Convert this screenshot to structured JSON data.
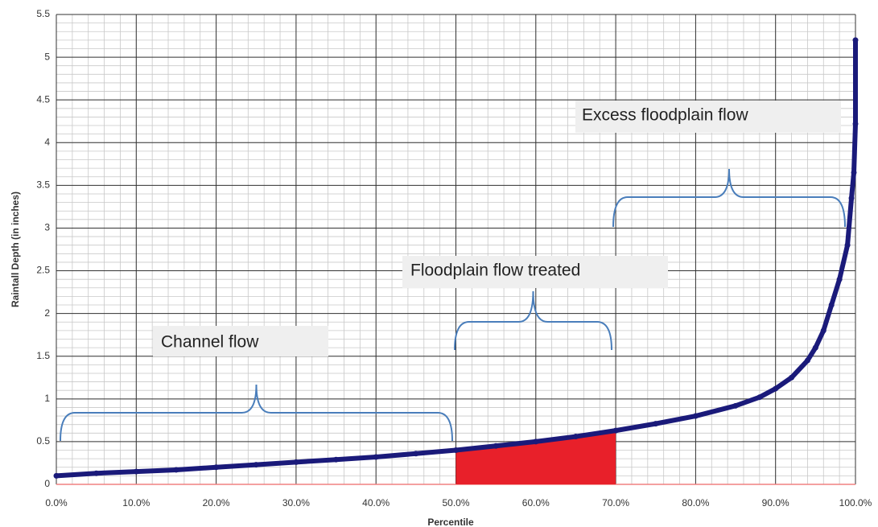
{
  "chart_data": {
    "type": "line",
    "x_label": "Percentile",
    "y_label": "Raintall Depth (in inches)",
    "xlim": [
      0,
      100
    ],
    "xticks": [
      {
        "value": 0,
        "label": "0.0%"
      },
      {
        "value": 10,
        "label": "10.0%"
      },
      {
        "value": 20,
        "label": "20.0%"
      },
      {
        "value": 30,
        "label": "30.0%"
      },
      {
        "value": 40,
        "label": "40.0%"
      },
      {
        "value": 50,
        "label": "50.0%"
      },
      {
        "value": 60,
        "label": "60.0%"
      },
      {
        "value": 70,
        "label": "70.0%"
      },
      {
        "value": 80,
        "label": "80.0%"
      },
      {
        "value": 90,
        "label": "90.0%"
      },
      {
        "value": 100,
        "label": "100.0%"
      }
    ],
    "ylim": [
      0,
      5.5
    ],
    "yticks": [
      0,
      0.5,
      1,
      1.5,
      2,
      2.5,
      3,
      3.5,
      4,
      4.5,
      5,
      5.5
    ],
    "grid": true,
    "series": [
      {
        "color": "#1a1a7a",
        "x": [
          0,
          5,
          10,
          15,
          20,
          25,
          30,
          35,
          40,
          45,
          50,
          55,
          60,
          65,
          70,
          75,
          80,
          85,
          88,
          90,
          92,
          94,
          95,
          96,
          97,
          98,
          99,
          99.5,
          99.8,
          100,
          100
        ],
        "values": [
          0.1,
          0.13,
          0.15,
          0.17,
          0.2,
          0.23,
          0.26,
          0.29,
          0.32,
          0.36,
          0.4,
          0.45,
          0.5,
          0.56,
          0.63,
          0.71,
          0.8,
          0.92,
          1.02,
          1.12,
          1.25,
          1.45,
          1.6,
          1.8,
          2.1,
          2.4,
          2.8,
          3.35,
          3.65,
          4.22,
          5.2
        ]
      }
    ],
    "shaded_range": [
      50,
      70
    ],
    "shaded_color": "#e8202a",
    "annotations": [
      "Channel flow",
      "Floodplain flow treated",
      "Excess floodplain flow"
    ]
  }
}
